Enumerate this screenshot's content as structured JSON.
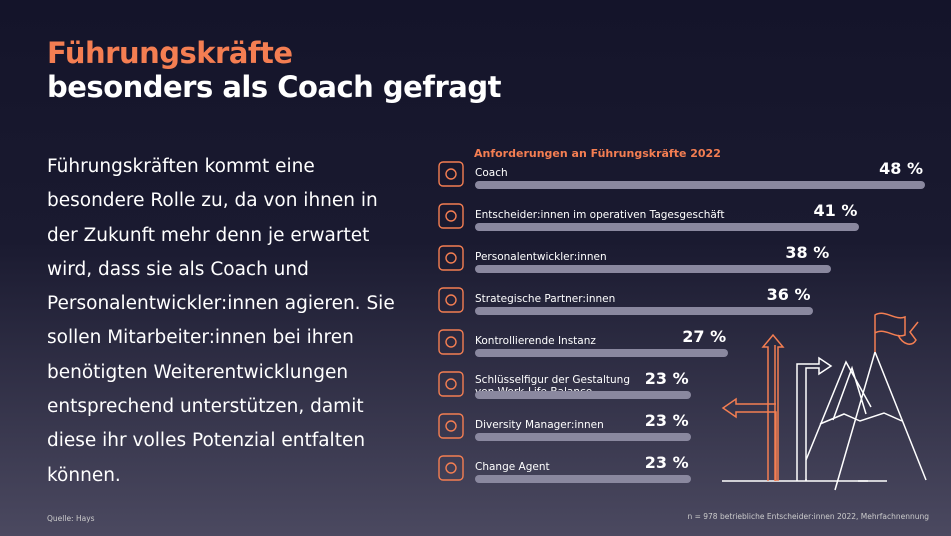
{
  "title": {
    "line1": "Führungskräfte",
    "line2": "besonders als Coach gefragt"
  },
  "body_text": "Führungskräften kommt eine besondere Rolle zu, da von ihnen in der Zukunft mehr denn je erwartet wird, dass sie als Coach und Personalentwickler:innen agieren. Sie sollen Mitarbeiter:innen bei ihren benötigten Weiterentwicklungen entsprechend unterstützen, damit diese ihr volles Potenzial entfalten können.",
  "source": "Quelle: Hays",
  "note": "n = 978 betriebliche Entscheider:innen 2022, Mehrfachnennung",
  "colors": {
    "accent": "#f47e52",
    "bar": "#8a889f",
    "text": "#ffffff"
  },
  "chart_data": {
    "type": "bar",
    "orientation": "horizontal",
    "title": "Anforderungen an Führungskräfte 2022",
    "categories": [
      "Coach",
      "Entscheider:innen im operativen Tagesgeschäft",
      "Personalentwickler:innen",
      "Strategische Partner:innen",
      "Kontrollierende Instanz",
      "Schlüsselfigur der Gestaltung von Work-Life-Balance",
      "Diversity Manager:innen",
      "Change Agent"
    ],
    "values": [
      48,
      41,
      38,
      36,
      27,
      23,
      23,
      23
    ],
    "value_labels": [
      "48 %",
      "41 %",
      "38 %",
      "36 %",
      "27 %",
      "23 %",
      "23 %",
      "23 %"
    ],
    "icons": [
      "target-ladder-icon",
      "calendar-icon",
      "people-growth-icon",
      "chess-knight-icon",
      "clipboard-check-icon",
      "gear-heart-balance-icon",
      "rainbow-flag-icon",
      "change-agent-icon"
    ],
    "unit": "%"
  }
}
